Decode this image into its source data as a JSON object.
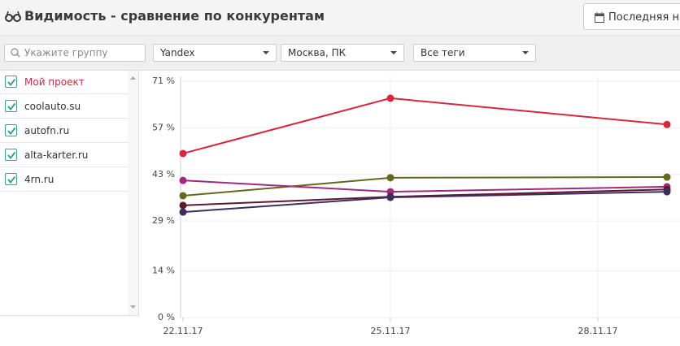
{
  "header": {
    "title": "Видимость - сравнение по конкурентам",
    "button": "Последняя н"
  },
  "filters": {
    "search_placeholder": "Укажите группу",
    "dropdowns": [
      "Yandex",
      "Москва, ПК",
      "Все теги"
    ]
  },
  "chart_data": {
    "type": "line",
    "x": [
      "2017-11-22",
      "2017-11-25",
      "2017-11-29"
    ],
    "xlim": [
      "2017-11-22",
      "2017-11-29"
    ],
    "xticks": [
      {
        "value": "2017-11-22",
        "label": "22.11.17"
      },
      {
        "value": "2017-11-25",
        "label": "25.11.17"
      },
      {
        "value": "2017-11-28",
        "label": "28.11.17"
      }
    ],
    "ylim": [
      0,
      71
    ],
    "yticks": [
      {
        "value": 0,
        "label": "0 %"
      },
      {
        "value": 14,
        "label": "14 %"
      },
      {
        "value": 29,
        "label": "29 %"
      },
      {
        "value": 43,
        "label": "43 %"
      },
      {
        "value": 57,
        "label": "57 %"
      },
      {
        "value": 71,
        "label": "71 %"
      }
    ],
    "grid": true,
    "series": [
      {
        "name": "Мой проект",
        "color": "#d7263d",
        "values": [
          49.3,
          65.9,
          58.0
        ]
      },
      {
        "name": "coolauto.su",
        "color": "#66661e",
        "values": [
          36.6,
          42.0,
          42.2
        ]
      },
      {
        "name": "autofn.ru",
        "color": "#a0287e",
        "values": [
          41.2,
          37.8,
          39.3
        ]
      },
      {
        "name": "alta-karter.ru",
        "color": "#5c1a2e",
        "values": [
          33.7,
          36.3,
          38.5
        ]
      },
      {
        "name": "4rn.ru",
        "color": "#3f2d5c",
        "values": [
          31.7,
          36.1,
          37.8
        ]
      }
    ]
  }
}
